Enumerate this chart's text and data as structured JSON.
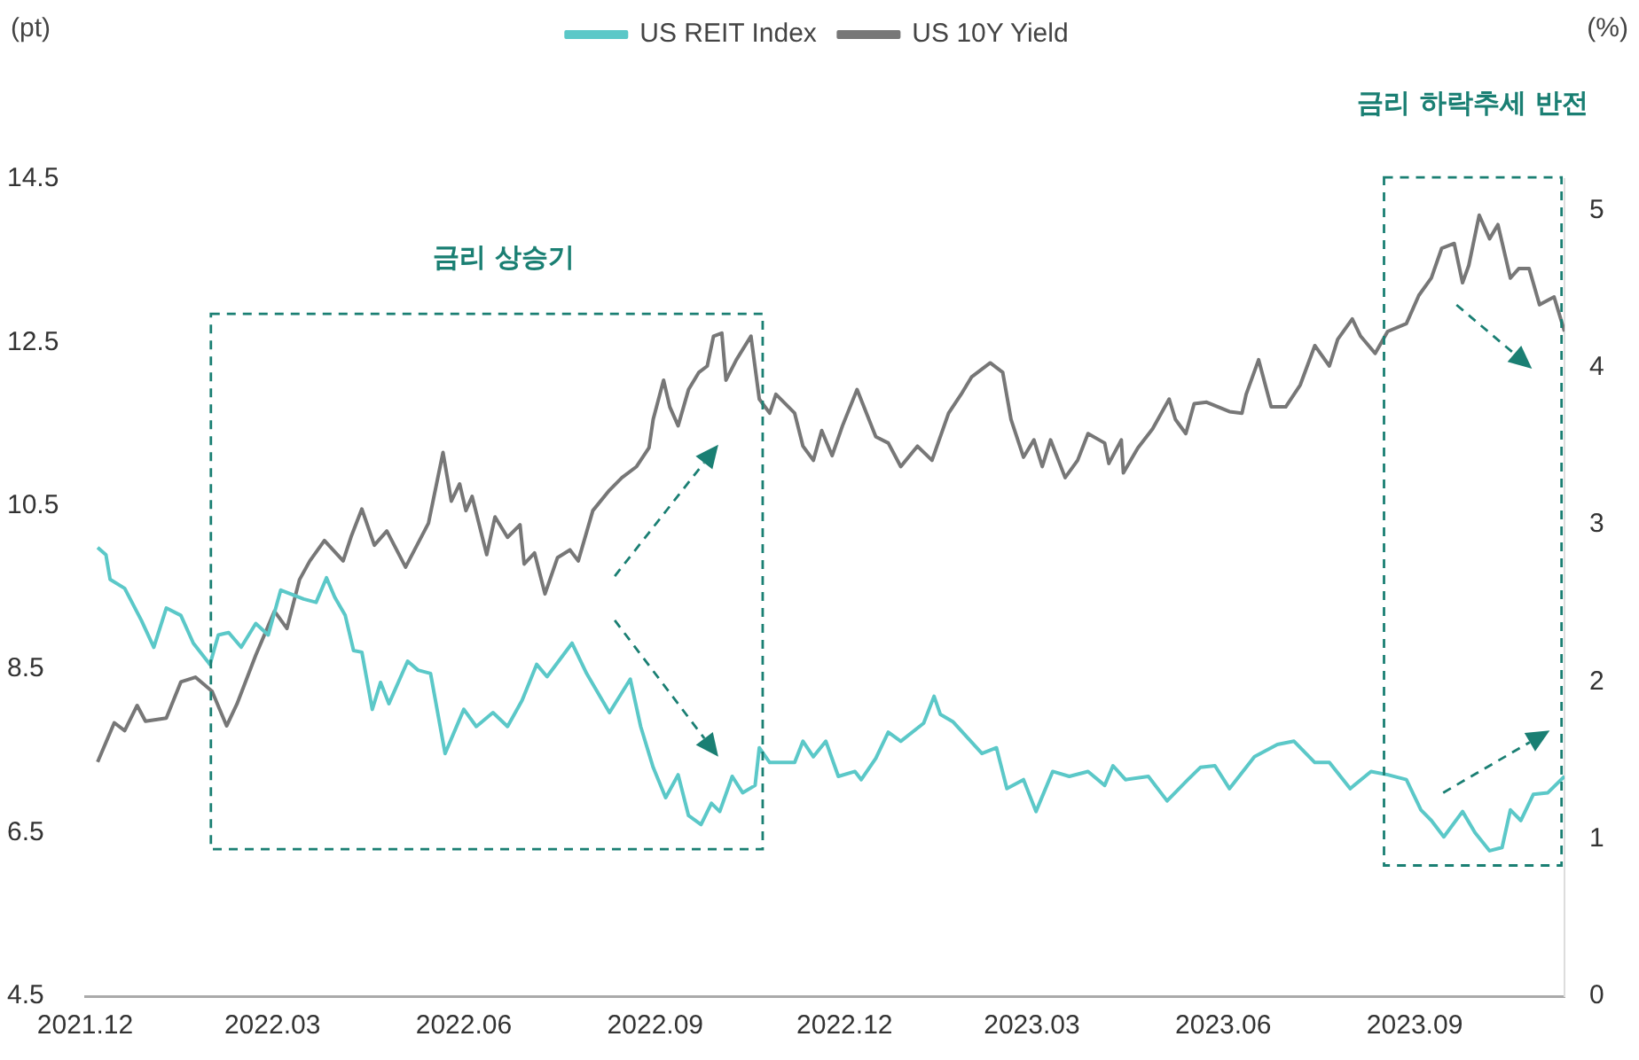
{
  "chart_data": {
    "type": "line",
    "ylabel": "(pt)",
    "y2label": "(%)",
    "legend": "top",
    "annotations": [
      "금리 상승기",
      "금리 하락추세 반전"
    ],
    "xlim": [
      "2021-12-01",
      "2023-11-12"
    ],
    "xticks": [
      {
        "value": "2021-12-01",
        "label": "2021.12"
      },
      {
        "value": "2022-03-01",
        "label": "2022.03"
      },
      {
        "value": "2022-06-01",
        "label": "2022.06"
      },
      {
        "value": "2022-09-01",
        "label": "2022.09"
      },
      {
        "value": "2022-12-01",
        "label": "2022.12"
      },
      {
        "value": "2023-03-01",
        "label": "2023.03"
      },
      {
        "value": "2023-06-01",
        "label": "2023.06"
      },
      {
        "value": "2023-09-01",
        "label": "2023.09"
      }
    ],
    "ylim": [
      4.5,
      14.5
    ],
    "yticks": [
      4.5,
      6.5,
      8.5,
      10.5,
      12.5,
      14.5
    ],
    "y2lim": [
      0,
      5.2
    ],
    "y2ticks": [
      0,
      1,
      2,
      3,
      4,
      5
    ],
    "series": [
      {
        "name": "US REIT Index",
        "color": "#5bc8c8",
        "x": [
          "2021-12-07",
          "2021-12-11",
          "2021-12-13",
          "2021-12-20",
          "2021-12-28",
          "2022-01-03",
          "2022-01-09",
          "2022-01-16",
          "2022-01-22",
          "2022-01-30",
          "2022-02-03",
          "2022-02-08",
          "2022-02-14",
          "2022-02-21",
          "2022-02-27",
          "2022-03-05",
          "2022-03-10",
          "2022-03-16",
          "2022-03-22",
          "2022-03-27",
          "2022-03-31",
          "2022-04-05",
          "2022-04-09",
          "2022-04-13",
          "2022-04-18",
          "2022-04-22",
          "2022-04-26",
          "2022-05-05",
          "2022-05-10",
          "2022-05-16",
          "2022-05-23",
          "2022-06-01",
          "2022-06-07",
          "2022-06-15",
          "2022-06-22",
          "2022-06-29",
          "2022-07-06",
          "2022-07-11",
          "2022-07-23",
          "2022-07-30",
          "2022-08-10",
          "2022-08-20",
          "2022-08-25",
          "2022-08-31",
          "2022-09-06",
          "2022-09-12",
          "2022-09-17",
          "2022-09-23",
          "2022-09-28",
          "2022-10-02",
          "2022-10-08",
          "2022-10-13",
          "2022-10-19",
          "2022-10-21",
          "2022-10-26",
          "2022-11-07",
          "2022-11-11",
          "2022-11-16",
          "2022-11-22",
          "2022-11-28",
          "2022-12-06",
          "2022-12-09",
          "2022-12-16",
          "2022-12-22",
          "2022-12-28",
          "2023-01-08",
          "2023-01-13",
          "2023-01-16",
          "2023-01-22",
          "2023-02-05",
          "2023-02-12",
          "2023-02-17",
          "2023-02-25",
          "2023-03-03",
          "2023-03-11",
          "2023-03-19",
          "2023-03-28",
          "2023-04-05",
          "2023-04-09",
          "2023-04-15",
          "2023-04-26",
          "2023-05-05",
          "2023-05-15",
          "2023-05-21",
          "2023-05-28",
          "2023-06-04",
          "2023-06-16",
          "2023-06-27",
          "2023-07-05",
          "2023-07-15",
          "2023-07-22",
          "2023-08-01",
          "2023-08-11",
          "2023-08-19",
          "2023-08-28",
          "2023-09-04",
          "2023-09-09",
          "2023-09-15",
          "2023-09-24",
          "2023-09-30",
          "2023-10-07",
          "2023-10-13",
          "2023-10-17",
          "2023-10-22",
          "2023-10-28",
          "2023-11-04",
          "2023-11-12"
        ],
        "values": [
          9.99,
          9.9,
          9.6,
          9.49,
          9.1,
          8.77,
          9.25,
          9.16,
          8.82,
          8.56,
          8.92,
          8.95,
          8.77,
          9.06,
          8.92,
          9.47,
          9.42,
          9.36,
          9.32,
          9.62,
          9.38,
          9.16,
          8.73,
          8.71,
          8.01,
          8.34,
          8.08,
          8.6,
          8.49,
          8.45,
          7.47,
          8.01,
          7.8,
          7.97,
          7.8,
          8.12,
          8.56,
          8.41,
          8.82,
          8.45,
          7.97,
          8.38,
          7.8,
          7.3,
          6.93,
          7.21,
          6.71,
          6.6,
          6.86,
          6.76,
          7.19,
          6.99,
          7.08,
          7.54,
          7.36,
          7.36,
          7.62,
          7.43,
          7.62,
          7.19,
          7.25,
          7.15,
          7.41,
          7.73,
          7.62,
          7.84,
          8.17,
          7.95,
          7.86,
          7.47,
          7.54,
          7.04,
          7.15,
          6.76,
          7.25,
          7.19,
          7.25,
          7.08,
          7.32,
          7.15,
          7.19,
          6.89,
          7.15,
          7.3,
          7.32,
          7.04,
          7.43,
          7.58,
          7.62,
          7.36,
          7.36,
          7.04,
          7.25,
          7.21,
          7.15,
          6.78,
          6.65,
          6.45,
          6.76,
          6.5,
          6.28,
          6.32,
          6.78,
          6.65,
          6.97,
          6.99,
          7.19
        ]
      },
      {
        "name": "US 10Y Yield",
        "color": "#777777",
        "axis": "y2",
        "x": [
          "2021-12-07",
          "2021-12-15",
          "2021-12-20",
          "2021-12-26",
          "2021-12-30",
          "2022-01-09",
          "2022-01-16",
          "2022-01-23",
          "2022-01-31",
          "2022-02-07",
          "2022-02-12",
          "2022-02-21",
          "2022-03-02",
          "2022-03-08",
          "2022-03-14",
          "2022-03-19",
          "2022-03-26",
          "2022-04-04",
          "2022-04-08",
          "2022-04-13",
          "2022-04-19",
          "2022-04-25",
          "2022-05-04",
          "2022-05-15",
          "2022-05-22",
          "2022-05-26",
          "2022-05-30",
          "2022-06-02",
          "2022-06-05",
          "2022-06-12",
          "2022-06-16",
          "2022-06-22",
          "2022-06-28",
          "2022-06-30",
          "2022-07-05",
          "2022-07-10",
          "2022-07-16",
          "2022-07-22",
          "2022-07-26",
          "2022-08-02",
          "2022-08-10",
          "2022-08-16",
          "2022-08-23",
          "2022-08-29",
          "2022-08-31",
          "2022-09-05",
          "2022-09-08",
          "2022-09-12",
          "2022-09-17",
          "2022-09-22",
          "2022-09-26",
          "2022-09-29",
          "2022-10-03",
          "2022-10-05",
          "2022-10-10",
          "2022-10-17",
          "2022-10-21",
          "2022-10-26",
          "2022-10-29",
          "2022-11-07",
          "2022-11-11",
          "2022-11-16",
          "2022-11-20",
          "2022-11-25",
          "2022-11-30",
          "2022-12-07",
          "2022-12-16",
          "2022-12-22",
          "2022-12-28",
          "2023-01-05",
          "2023-01-12",
          "2023-01-20",
          "2023-01-26",
          "2023-01-31",
          "2023-02-09",
          "2023-02-15",
          "2023-02-19",
          "2023-02-25",
          "2023-03-02",
          "2023-03-06",
          "2023-03-10",
          "2023-03-17",
          "2023-03-23",
          "2023-03-28",
          "2023-04-05",
          "2023-04-07",
          "2023-04-13",
          "2023-04-14",
          "2023-04-21",
          "2023-04-28",
          "2023-05-06",
          "2023-05-09",
          "2023-05-14",
          "2023-05-18",
          "2023-05-24",
          "2023-06-04",
          "2023-06-10",
          "2023-06-12",
          "2023-06-18",
          "2023-06-24",
          "2023-07-01",
          "2023-07-08",
          "2023-07-15",
          "2023-07-22",
          "2023-07-26",
          "2023-08-02",
          "2023-08-06",
          "2023-08-13",
          "2023-08-19",
          "2023-08-28",
          "2023-09-03",
          "2023-09-09",
          "2023-09-14",
          "2023-09-20",
          "2023-09-24",
          "2023-09-27",
          "2023-10-02",
          "2023-10-07",
          "2023-10-11",
          "2023-10-17",
          "2023-10-21",
          "2023-10-26",
          "2023-10-31",
          "2023-11-07",
          "2023-11-12"
        ],
        "values": [
          1.49,
          1.74,
          1.69,
          1.85,
          1.75,
          1.77,
          2.0,
          2.03,
          1.94,
          1.72,
          1.86,
          2.17,
          2.45,
          2.34,
          2.65,
          2.77,
          2.9,
          2.77,
          2.93,
          3.1,
          2.87,
          2.96,
          2.73,
          3.01,
          3.46,
          3.15,
          3.26,
          3.09,
          3.18,
          2.81,
          3.05,
          2.92,
          3.0,
          2.75,
          2.82,
          2.56,
          2.79,
          2.84,
          2.77,
          3.09,
          3.22,
          3.3,
          3.37,
          3.49,
          3.67,
          3.92,
          3.75,
          3.63,
          3.86,
          3.97,
          4.01,
          4.2,
          4.22,
          3.92,
          4.05,
          4.2,
          3.8,
          3.71,
          3.83,
          3.71,
          3.5,
          3.41,
          3.6,
          3.44,
          3.63,
          3.86,
          3.56,
          3.52,
          3.37,
          3.5,
          3.41,
          3.71,
          3.83,
          3.94,
          4.03,
          3.97,
          3.67,
          3.43,
          3.54,
          3.37,
          3.54,
          3.3,
          3.41,
          3.58,
          3.52,
          3.39,
          3.54,
          3.33,
          3.49,
          3.61,
          3.8,
          3.67,
          3.58,
          3.77,
          3.78,
          3.72,
          3.71,
          3.83,
          4.05,
          3.75,
          3.75,
          3.89,
          4.14,
          4.01,
          4.18,
          4.31,
          4.2,
          4.09,
          4.23,
          4.28,
          4.46,
          4.57,
          4.76,
          4.79,
          4.54,
          4.65,
          4.97,
          4.82,
          4.91,
          4.57,
          4.63,
          4.63,
          4.4,
          4.45,
          4.23
        ]
      }
    ]
  }
}
